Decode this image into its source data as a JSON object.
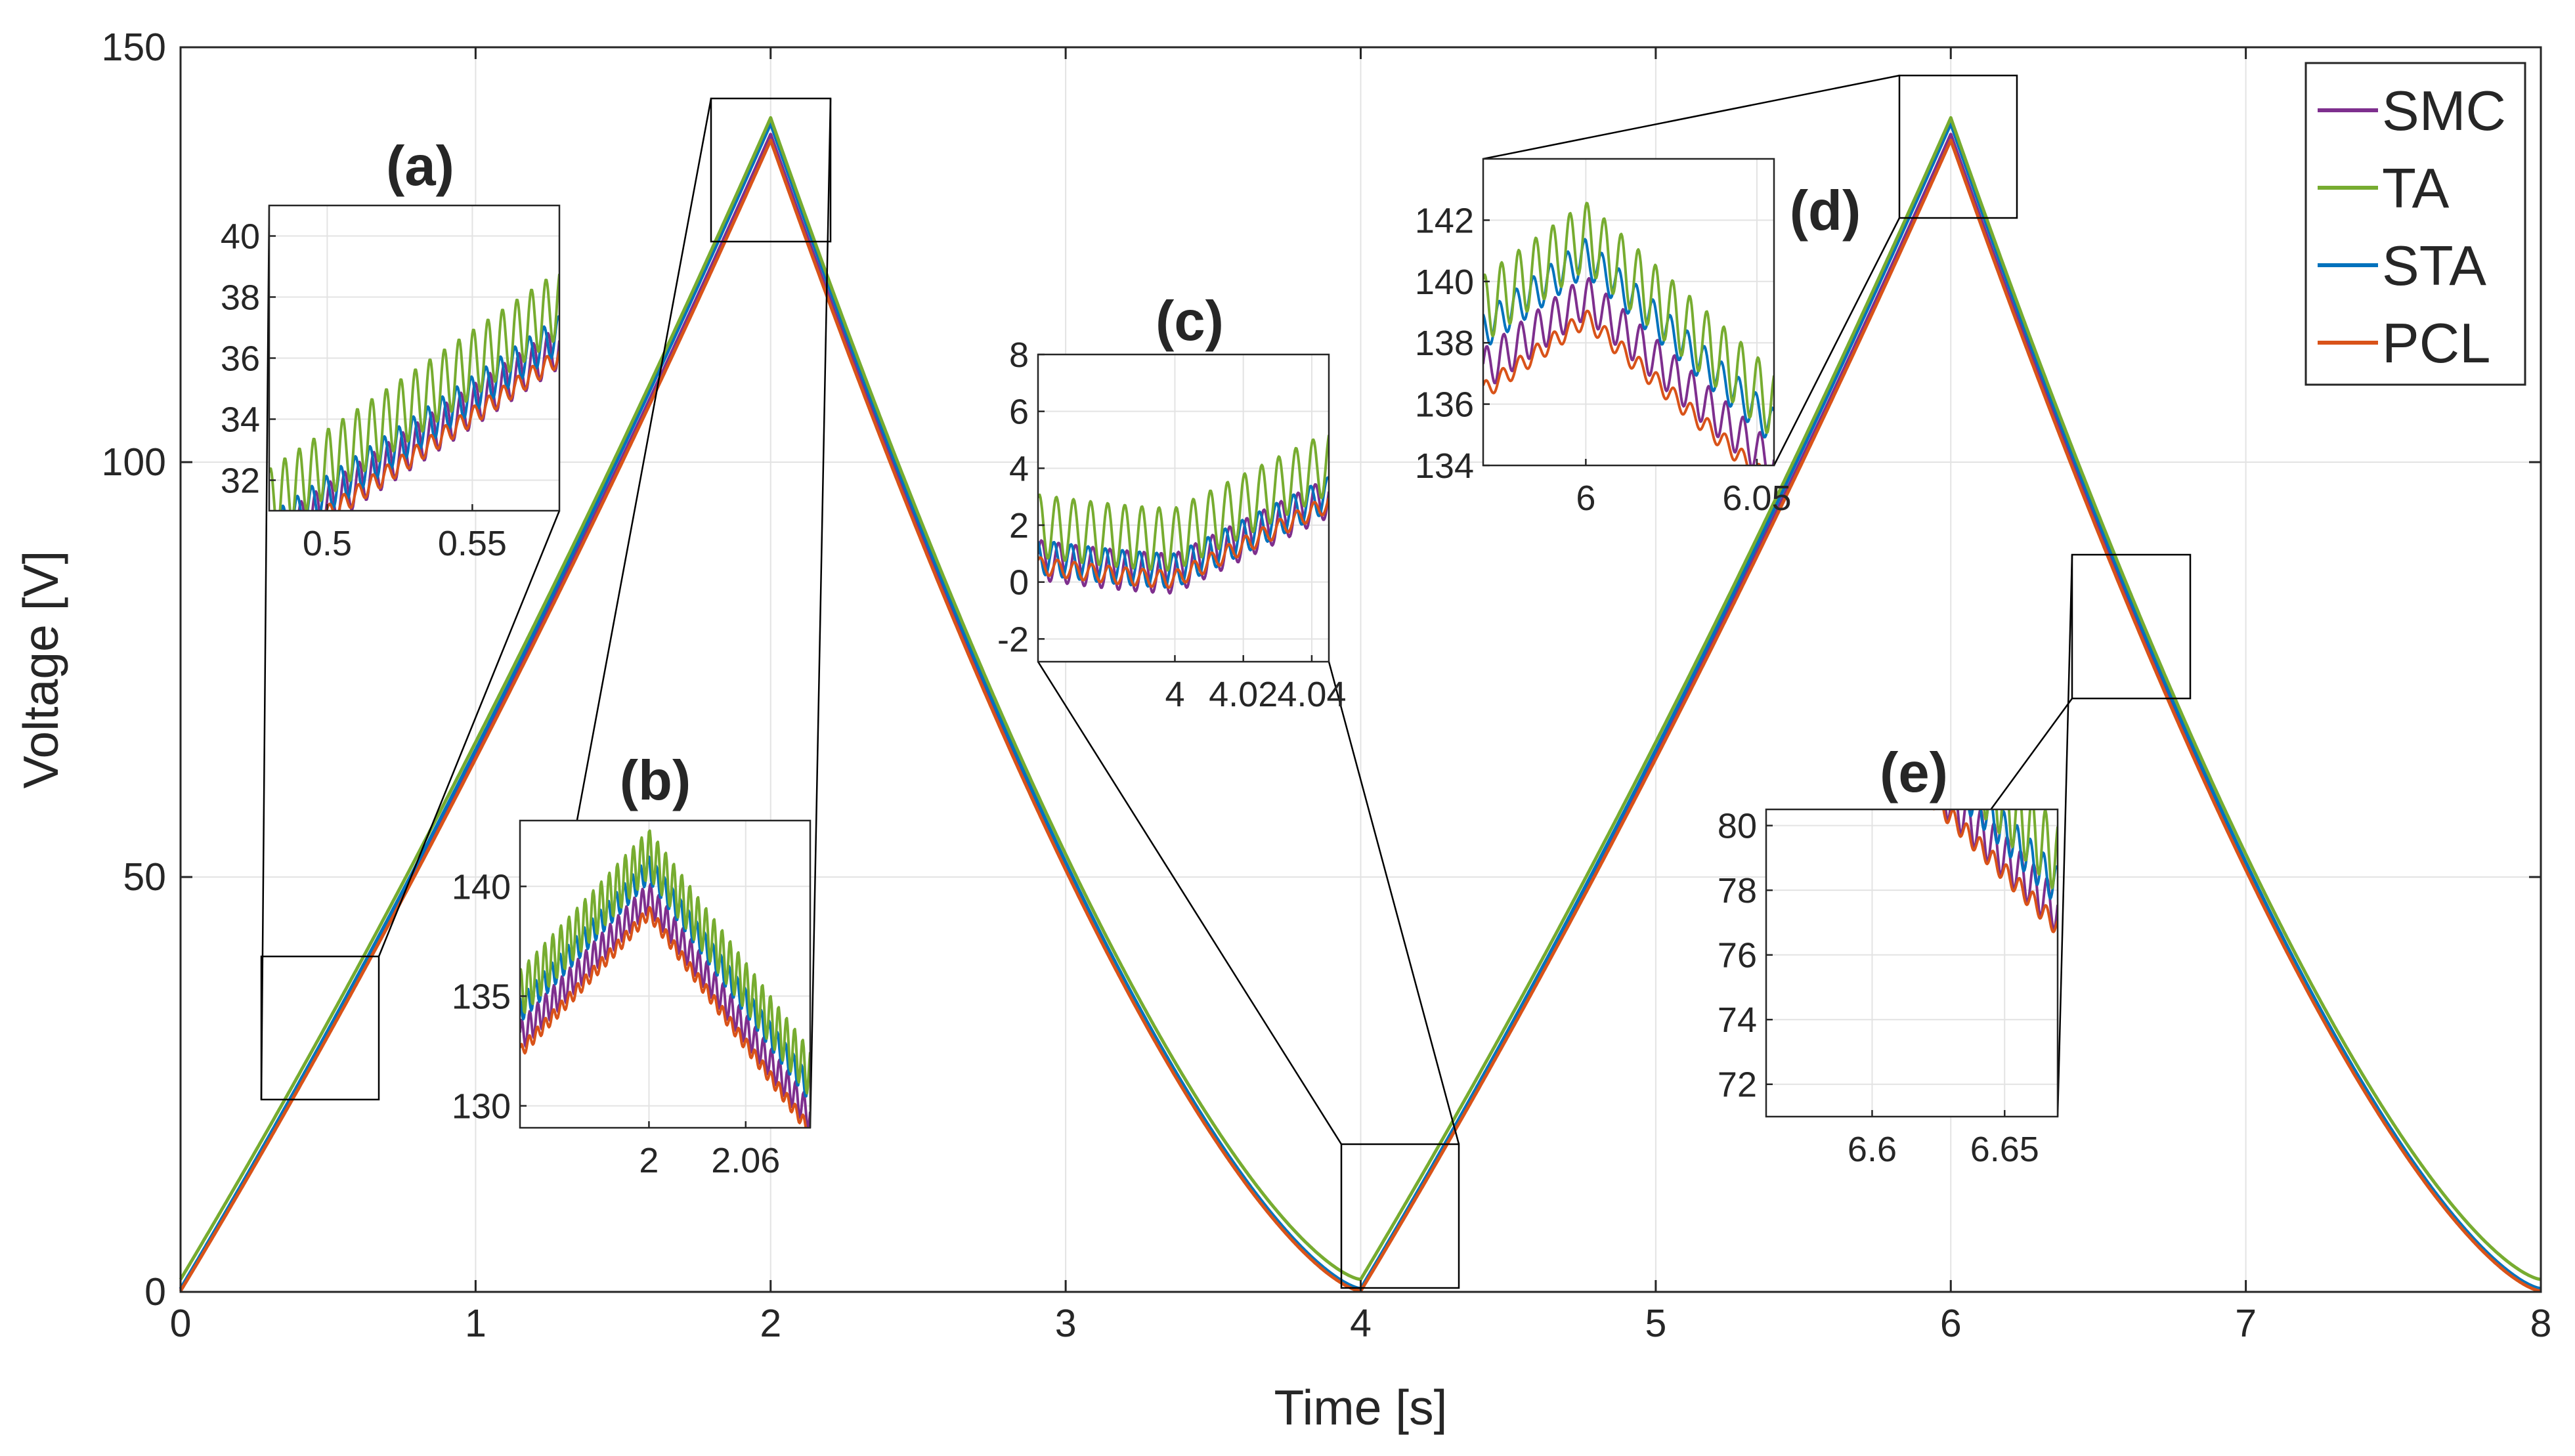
{
  "chart_data": {
    "type": "line",
    "title": "",
    "xlabel": "Time [s]",
    "ylabel": "Voltage [V]",
    "xlim": [
      0,
      8
    ],
    "ylim": [
      0,
      150
    ],
    "xticks": [
      "0",
      "1",
      "2",
      "3",
      "4",
      "5",
      "6",
      "7",
      "8"
    ],
    "yticks": [
      "0",
      "50",
      "100",
      "150"
    ],
    "grid": true,
    "legend_position": "top-right",
    "series": [
      {
        "name": "SMC",
        "color": "#7E2F8E",
        "peak": 139.5,
        "trough": 0.3
      },
      {
        "name": "TA",
        "color": "#77AC30",
        "peak": 141.5,
        "trough": 1.5
      },
      {
        "name": "STA",
        "color": "#0072BD",
        "peak": 140.8,
        "trough": 0.4
      },
      {
        "name": "PCL",
        "color": "#D95319",
        "peak": 138.8,
        "trough": 0.1
      }
    ],
    "x": [
      0,
      1,
      2,
      3,
      4,
      5,
      6,
      7,
      8
    ],
    "approx_values": {
      "SMC": [
        0,
        61,
        139.5,
        52,
        0.3,
        66,
        139.5,
        53,
        0
      ],
      "TA": [
        0,
        62,
        141.5,
        53,
        1.5,
        67,
        141.5,
        54,
        1
      ],
      "STA": [
        0,
        61.5,
        140.8,
        52.5,
        0.4,
        66.5,
        140.8,
        53.5,
        0.5
      ],
      "PCL": [
        0,
        60.5,
        138.8,
        51.5,
        0.1,
        65.5,
        138.8,
        52.5,
        0
      ]
    },
    "insets": [
      {
        "label": "(a)",
        "xlim": [
          0.48,
          0.58
        ],
        "ylim": [
          31,
          41
        ],
        "xticks": [
          "0.5",
          "0.55"
        ],
        "yticks": [
          "32",
          "34",
          "36",
          "38",
          "40"
        ]
      },
      {
        "label": "(b)",
        "xlim": [
          1.92,
          2.1
        ],
        "ylim": [
          129,
          143
        ],
        "xticks": [
          "2",
          "2.06"
        ],
        "yticks": [
          "130",
          "135",
          "140"
        ]
      },
      {
        "label": "(c)",
        "xlim": [
          3.96,
          4.045
        ],
        "ylim": [
          -2.8,
          8
        ],
        "xticks": [
          "4",
          "4.02",
          "4.04"
        ],
        "yticks": [
          "-2",
          "0",
          "2",
          "4",
          "6",
          "8"
        ]
      },
      {
        "label": "(d)",
        "xlim": [
          5.97,
          6.055
        ],
        "ylim": [
          134,
          144
        ],
        "xticks": [
          "6",
          "6.05"
        ],
        "yticks": [
          "134",
          "136",
          "138",
          "140",
          "142"
        ]
      },
      {
        "label": "(e)",
        "xlim": [
          6.56,
          6.67
        ],
        "ylim": [
          71,
          80.5
        ],
        "xticks": [
          "6.6",
          "6.65"
        ],
        "yticks": [
          "72",
          "74",
          "76",
          "78",
          "80"
        ]
      }
    ]
  }
}
